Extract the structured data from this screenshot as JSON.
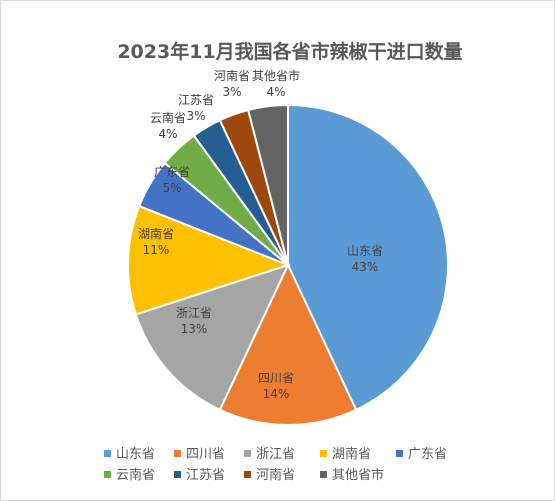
{
  "chart_data": {
    "type": "pie",
    "title": "2023年11月我国各省市辣椒干进口数量",
    "categories": [
      "山东省",
      "四川省",
      "浙江省",
      "湖南省",
      "广东省",
      "云南省",
      "江苏省",
      "河南省",
      "其他省市"
    ],
    "values": [
      43,
      14,
      13,
      11,
      5,
      4,
      3,
      3,
      4
    ],
    "value_labels": [
      "43%",
      "14%",
      "13%",
      "11%",
      "5%",
      "4%",
      "3%",
      "3%",
      "4%"
    ],
    "colors": [
      "#5b9bd5",
      "#ed7d31",
      "#a5a5a5",
      "#ffc000",
      "#4472c4",
      "#70ad47",
      "#255e91",
      "#9e480e",
      "#636363"
    ],
    "legend_position": "bottom",
    "slice_order": "clockwise from 12 o'clock"
  }
}
